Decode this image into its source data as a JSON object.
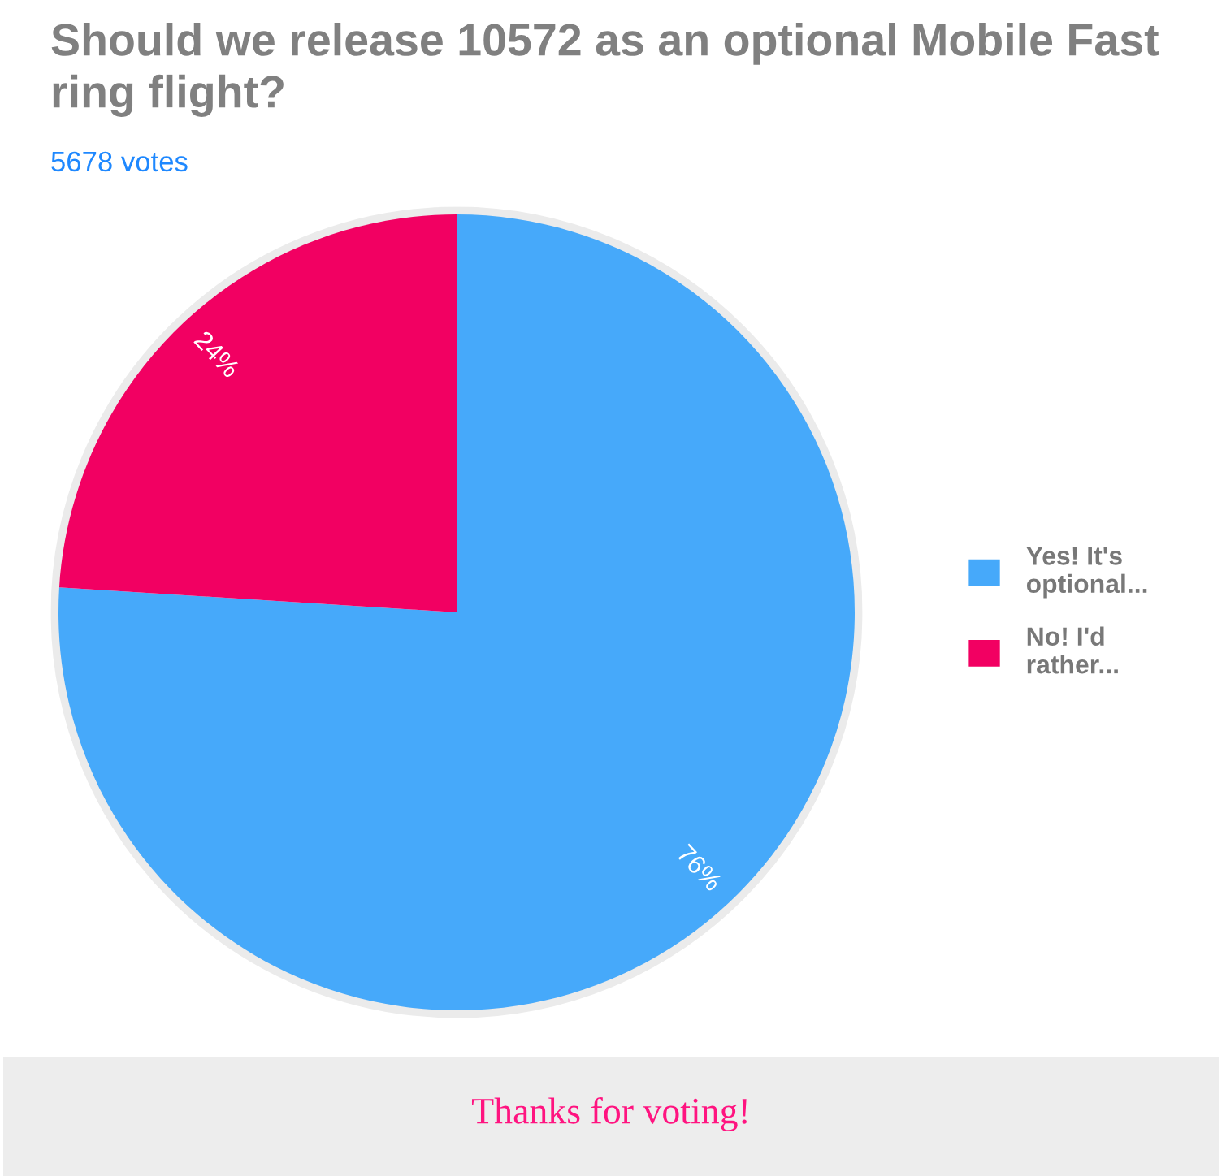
{
  "chart_data": {
    "type": "pie",
    "title": "Should we release 10572 as an optional Mobile Fast ring flight?",
    "subtitle": "5678 votes",
    "categories": [
      "Yes! It's\noptional...",
      "No! I'd\nrather..."
    ],
    "values": [
      76,
      24
    ],
    "colors": [
      "#46a9fa",
      "#f20062"
    ],
    "value_labels": [
      "76%",
      "24%"
    ],
    "legend": "right",
    "annotations": [
      "Thanks for voting!"
    ]
  }
}
